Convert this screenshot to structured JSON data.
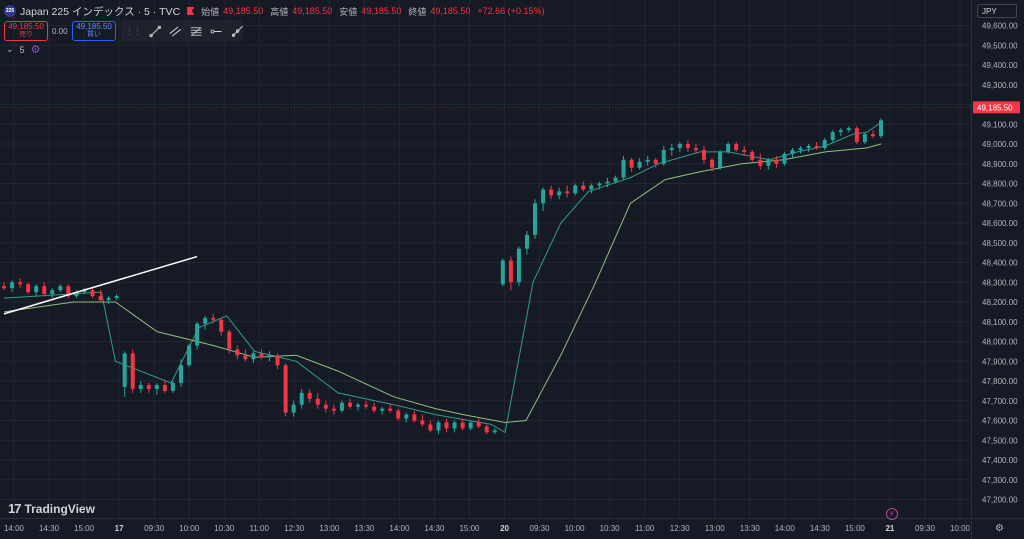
{
  "header": {
    "logo_text": "225",
    "title": "Japan 225 インデックス · 5 · TVC",
    "ohlc": [
      {
        "label": "始値",
        "value": "49,185.50"
      },
      {
        "label": "高値",
        "value": "49,185.50"
      },
      {
        "label": "安値",
        "value": "49,185.50"
      },
      {
        "label": "終値",
        "value": "49,185.50"
      }
    ],
    "change": "+72.66 (+0.15%)"
  },
  "trade": {
    "sell_price": "49,185.50",
    "sell_label": "売り",
    "spread": "0.00",
    "buy_price": "49,185.50",
    "buy_label": "買い"
  },
  "indicator": {
    "count": "5"
  },
  "currency": "JPY",
  "brand": "TradingView",
  "colors": {
    "up": "#26a69a",
    "down": "#f23645",
    "background": "#161a25",
    "grid": "#232632",
    "axis_text": "#b2b5be",
    "ma_fast": "#2e9e8a",
    "ma_slow": "#8fbf7f",
    "trendline": "#ffffff"
  },
  "chart_data": {
    "type": "candlestick",
    "yaxis": {
      "min": 47200,
      "max": 49600,
      "step": 100,
      "ticks": [
        "49,600.00",
        "49,500.00",
        "49,400.00",
        "49,300.00",
        "49,200.00",
        "49,100.00",
        "49,000.00",
        "48,900.00",
        "48,800.00",
        "48,700.00",
        "48,600.00",
        "48,500.00",
        "48,400.00",
        "48,300.00",
        "48,200.00",
        "48,100.00",
        "48,000.00",
        "47,900.00",
        "47,800.00",
        "47,700.00",
        "47,600.00",
        "47,500.00",
        "47,400.00",
        "47,300.00",
        "47,200.00"
      ]
    },
    "last_price": {
      "value": 49185.5,
      "label": "49,185.50"
    },
    "xaxis": {
      "slot_count": 130,
      "labels": [
        {
          "slot": 0,
          "text": "14:00"
        },
        {
          "slot": 6,
          "text": "14:30"
        },
        {
          "slot": 12,
          "text": "15:00"
        },
        {
          "slot": 18,
          "text": "17",
          "bold": true
        },
        {
          "slot": 24,
          "text": "09:30"
        },
        {
          "slot": 30,
          "text": "10:00"
        },
        {
          "slot": 36,
          "text": "10:30"
        },
        {
          "slot": 42,
          "text": "11:00"
        },
        {
          "slot": 48,
          "text": "12:30"
        },
        {
          "slot": 54,
          "text": "13:00"
        },
        {
          "slot": 60,
          "text": "13:30"
        },
        {
          "slot": 66,
          "text": "14:00"
        },
        {
          "slot": 72,
          "text": "14:30"
        },
        {
          "slot": 78,
          "text": "15:00"
        },
        {
          "slot": 84,
          "text": "20",
          "bold": true
        },
        {
          "slot": 90,
          "text": "09:30"
        },
        {
          "slot": 96,
          "text": "10:00"
        },
        {
          "slot": 102,
          "text": "10:30"
        },
        {
          "slot": 108,
          "text": "11:00"
        },
        {
          "slot": 114,
          "text": "12:30"
        },
        {
          "slot": 120,
          "text": "13:00"
        },
        {
          "slot": 126,
          "text": "13:30"
        },
        {
          "slot": 132,
          "text": "14:00"
        },
        {
          "slot": 138,
          "text": "14:30"
        },
        {
          "slot": 144,
          "text": "15:00"
        },
        {
          "slot": 150,
          "text": "21",
          "bold": true
        },
        {
          "slot": 156,
          "text": "09:30"
        },
        {
          "slot": 162,
          "text": "10:00"
        }
      ]
    },
    "candles": [
      {
        "o": 48280,
        "h": 48300,
        "l": 48260,
        "c": 48270
      },
      {
        "o": 48270,
        "h": 48310,
        "l": 48250,
        "c": 48300
      },
      {
        "o": 48300,
        "h": 48320,
        "l": 48270,
        "c": 48290
      },
      {
        "o": 48290,
        "h": 48300,
        "l": 48240,
        "c": 48250
      },
      {
        "o": 48250,
        "h": 48290,
        "l": 48230,
        "c": 48280
      },
      {
        "o": 48280,
        "h": 48300,
        "l": 48230,
        "c": 48240
      },
      {
        "o": 48240,
        "h": 48270,
        "l": 48220,
        "c": 48260
      },
      {
        "o": 48260,
        "h": 48290,
        "l": 48250,
        "c": 48280
      },
      {
        "o": 48280,
        "h": 48290,
        "l": 48220,
        "c": 48230
      },
      {
        "o": 48230,
        "h": 48260,
        "l": 48220,
        "c": 48250
      },
      {
        "o": 48250,
        "h": 48270,
        "l": 48240,
        "c": 48260
      },
      {
        "o": 48260,
        "h": 48270,
        "l": 48220,
        "c": 48230
      },
      {
        "o": 48230,
        "h": 48260,
        "l": 48200,
        "c": 48210
      },
      {
        "o": 48210,
        "h": 48230,
        "l": 48190,
        "c": 48220
      },
      {
        "o": 48220,
        "h": 48240,
        "l": 48210,
        "c": 48230
      },
      {
        "o": 47770,
        "h": 47950,
        "l": 47720,
        "c": 47940
      },
      {
        "o": 47940,
        "h": 47960,
        "l": 47740,
        "c": 47760
      },
      {
        "o": 47760,
        "h": 47800,
        "l": 47740,
        "c": 47780
      },
      {
        "o": 47780,
        "h": 47790,
        "l": 47740,
        "c": 47760
      },
      {
        "o": 47760,
        "h": 47790,
        "l": 47730,
        "c": 47780
      },
      {
        "o": 47780,
        "h": 47800,
        "l": 47740,
        "c": 47750
      },
      {
        "o": 47750,
        "h": 47800,
        "l": 47740,
        "c": 47790
      },
      {
        "o": 47790,
        "h": 47910,
        "l": 47770,
        "c": 47880
      },
      {
        "o": 47880,
        "h": 47990,
        "l": 47870,
        "c": 47980
      },
      {
        "o": 47980,
        "h": 48100,
        "l": 47960,
        "c": 48090
      },
      {
        "o": 48090,
        "h": 48130,
        "l": 48060,
        "c": 48120
      },
      {
        "o": 48120,
        "h": 48140,
        "l": 48090,
        "c": 48110
      },
      {
        "o": 48110,
        "h": 48120,
        "l": 48030,
        "c": 48050
      },
      {
        "o": 48050,
        "h": 48060,
        "l": 47940,
        "c": 47960
      },
      {
        "o": 47960,
        "h": 47980,
        "l": 47910,
        "c": 47930
      },
      {
        "o": 47930,
        "h": 47960,
        "l": 47900,
        "c": 47910
      },
      {
        "o": 47910,
        "h": 47950,
        "l": 47890,
        "c": 47940
      },
      {
        "o": 47940,
        "h": 47960,
        "l": 47910,
        "c": 47920
      },
      {
        "o": 47920,
        "h": 47950,
        "l": 47900,
        "c": 47930
      },
      {
        "o": 47930,
        "h": 47940,
        "l": 47860,
        "c": 47880
      },
      {
        "o": 47880,
        "h": 47890,
        "l": 47620,
        "c": 47640
      },
      {
        "o": 47640,
        "h": 47700,
        "l": 47620,
        "c": 47680
      },
      {
        "o": 47680,
        "h": 47760,
        "l": 47660,
        "c": 47740
      },
      {
        "o": 47740,
        "h": 47760,
        "l": 47690,
        "c": 47710
      },
      {
        "o": 47710,
        "h": 47740,
        "l": 47660,
        "c": 47680
      },
      {
        "o": 47680,
        "h": 47700,
        "l": 47640,
        "c": 47660
      },
      {
        "o": 47660,
        "h": 47680,
        "l": 47630,
        "c": 47650
      },
      {
        "o": 47650,
        "h": 47700,
        "l": 47640,
        "c": 47690
      },
      {
        "o": 47690,
        "h": 47710,
        "l": 47660,
        "c": 47670
      },
      {
        "o": 47670,
        "h": 47690,
        "l": 47650,
        "c": 47680
      },
      {
        "o": 47680,
        "h": 47700,
        "l": 47660,
        "c": 47670
      },
      {
        "o": 47670,
        "h": 47690,
        "l": 47640,
        "c": 47650
      },
      {
        "o": 47650,
        "h": 47670,
        "l": 47630,
        "c": 47660
      },
      {
        "o": 47660,
        "h": 47680,
        "l": 47640,
        "c": 47650
      },
      {
        "o": 47650,
        "h": 47660,
        "l": 47600,
        "c": 47610
      },
      {
        "o": 47610,
        "h": 47640,
        "l": 47590,
        "c": 47630
      },
      {
        "o": 47630,
        "h": 47650,
        "l": 47590,
        "c": 47600
      },
      {
        "o": 47600,
        "h": 47630,
        "l": 47570,
        "c": 47580
      },
      {
        "o": 47580,
        "h": 47600,
        "l": 47540,
        "c": 47550
      },
      {
        "o": 47550,
        "h": 47600,
        "l": 47530,
        "c": 47590
      },
      {
        "o": 47590,
        "h": 47610,
        "l": 47540,
        "c": 47560
      },
      {
        "o": 47560,
        "h": 47600,
        "l": 47540,
        "c": 47590
      },
      {
        "o": 47590,
        "h": 47610,
        "l": 47550,
        "c": 47560
      },
      {
        "o": 47560,
        "h": 47600,
        "l": 47550,
        "c": 47590
      },
      {
        "o": 47590,
        "h": 47610,
        "l": 47560,
        "c": 47570
      },
      {
        "o": 47570,
        "h": 47580,
        "l": 47530,
        "c": 47540
      },
      {
        "o": 47540,
        "h": 47560,
        "l": 47530,
        "c": 47550
      },
      {
        "o": 48290,
        "h": 48420,
        "l": 48280,
        "c": 48410
      },
      {
        "o": 48410,
        "h": 48430,
        "l": 48260,
        "c": 48300
      },
      {
        "o": 48300,
        "h": 48480,
        "l": 48280,
        "c": 48470
      },
      {
        "o": 48470,
        "h": 48560,
        "l": 48440,
        "c": 48540
      },
      {
        "o": 48540,
        "h": 48720,
        "l": 48520,
        "c": 48700
      },
      {
        "o": 48700,
        "h": 48780,
        "l": 48660,
        "c": 48770
      },
      {
        "o": 48770,
        "h": 48790,
        "l": 48720,
        "c": 48740
      },
      {
        "o": 48740,
        "h": 48780,
        "l": 48720,
        "c": 48760
      },
      {
        "o": 48760,
        "h": 48790,
        "l": 48730,
        "c": 48750
      },
      {
        "o": 48750,
        "h": 48800,
        "l": 48740,
        "c": 48790
      },
      {
        "o": 48790,
        "h": 48810,
        "l": 48760,
        "c": 48770
      },
      {
        "o": 48770,
        "h": 48800,
        "l": 48750,
        "c": 48790
      },
      {
        "o": 48790,
        "h": 48810,
        "l": 48770,
        "c": 48800
      },
      {
        "o": 48800,
        "h": 48830,
        "l": 48780,
        "c": 48810
      },
      {
        "o": 48810,
        "h": 48840,
        "l": 48800,
        "c": 48830
      },
      {
        "o": 48830,
        "h": 48940,
        "l": 48820,
        "c": 48920
      },
      {
        "o": 48920,
        "h": 48930,
        "l": 48860,
        "c": 48880
      },
      {
        "o": 48880,
        "h": 48930,
        "l": 48870,
        "c": 48910
      },
      {
        "o": 48910,
        "h": 48940,
        "l": 48890,
        "c": 48920
      },
      {
        "o": 48920,
        "h": 48930,
        "l": 48880,
        "c": 48900
      },
      {
        "o": 48900,
        "h": 48990,
        "l": 48890,
        "c": 48970
      },
      {
        "o": 48970,
        "h": 49000,
        "l": 48940,
        "c": 48980
      },
      {
        "o": 48980,
        "h": 49010,
        "l": 48960,
        "c": 49000
      },
      {
        "o": 49000,
        "h": 49020,
        "l": 48960,
        "c": 48980
      },
      {
        "o": 48980,
        "h": 49000,
        "l": 48950,
        "c": 48970
      },
      {
        "o": 48970,
        "h": 48990,
        "l": 48900,
        "c": 48920
      },
      {
        "o": 48920,
        "h": 48930,
        "l": 48860,
        "c": 48880
      },
      {
        "o": 48880,
        "h": 48970,
        "l": 48870,
        "c": 48960
      },
      {
        "o": 48960,
        "h": 49010,
        "l": 48950,
        "c": 49000
      },
      {
        "o": 49000,
        "h": 49010,
        "l": 48960,
        "c": 48970
      },
      {
        "o": 48970,
        "h": 48990,
        "l": 48940,
        "c": 48960
      },
      {
        "o": 48960,
        "h": 48970,
        "l": 48910,
        "c": 48920
      },
      {
        "o": 48920,
        "h": 48950,
        "l": 48870,
        "c": 48890
      },
      {
        "o": 48890,
        "h": 48930,
        "l": 48870,
        "c": 48920
      },
      {
        "o": 48920,
        "h": 48940,
        "l": 48880,
        "c": 48900
      },
      {
        "o": 48900,
        "h": 48960,
        "l": 48890,
        "c": 48950
      },
      {
        "o": 48950,
        "h": 48980,
        "l": 48930,
        "c": 48970
      },
      {
        "o": 48970,
        "h": 48990,
        "l": 48950,
        "c": 48980
      },
      {
        "o": 48980,
        "h": 49000,
        "l": 48960,
        "c": 48990
      },
      {
        "o": 48990,
        "h": 49010,
        "l": 48970,
        "c": 48980
      },
      {
        "o": 48980,
        "h": 49030,
        "l": 48970,
        "c": 49020
      },
      {
        "o": 49020,
        "h": 49070,
        "l": 49010,
        "c": 49060
      },
      {
        "o": 49060,
        "h": 49080,
        "l": 49040,
        "c": 49070
      },
      {
        "o": 49070,
        "h": 49090,
        "l": 49060,
        "c": 49080
      },
      {
        "o": 49080,
        "h": 49090,
        "l": 49000,
        "c": 49010
      },
      {
        "o": 49010,
        "h": 49060,
        "l": 49000,
        "c": 49050
      },
      {
        "o": 49050,
        "h": 49070,
        "l": 49030,
        "c": 49040
      },
      {
        "o": 49040,
        "h": 49130,
        "l": 49030,
        "c": 49120
      }
    ],
    "moving_averages": [
      {
        "color": "#2e9e8a",
        "points": [
          [
            0,
            48220
          ],
          [
            14,
            48250
          ],
          [
            16,
            47900
          ],
          [
            24,
            47790
          ],
          [
            28,
            48070
          ],
          [
            32,
            48130
          ],
          [
            36,
            47950
          ],
          [
            42,
            47900
          ],
          [
            48,
            47740
          ],
          [
            56,
            47680
          ],
          [
            62,
            47630
          ],
          [
            70,
            47580
          ],
          [
            72,
            47540
          ],
          [
            76,
            48300
          ],
          [
            80,
            48600
          ],
          [
            84,
            48760
          ],
          [
            90,
            48830
          ],
          [
            94,
            48900
          ],
          [
            100,
            48960
          ],
          [
            104,
            48960
          ],
          [
            110,
            48920
          ],
          [
            114,
            48960
          ],
          [
            118,
            48990
          ],
          [
            122,
            49050
          ],
          [
            124,
            49060
          ],
          [
            126,
            49110
          ]
        ]
      },
      {
        "color": "#8fbf7f",
        "points": [
          [
            0,
            48150
          ],
          [
            10,
            48200
          ],
          [
            16,
            48200
          ],
          [
            22,
            48050
          ],
          [
            30,
            47980
          ],
          [
            36,
            47920
          ],
          [
            42,
            47930
          ],
          [
            48,
            47850
          ],
          [
            56,
            47720
          ],
          [
            62,
            47660
          ],
          [
            66,
            47630
          ],
          [
            72,
            47590
          ],
          [
            75,
            47600
          ],
          [
            80,
            47930
          ],
          [
            85,
            48300
          ],
          [
            90,
            48700
          ],
          [
            95,
            48820
          ],
          [
            100,
            48860
          ],
          [
            106,
            48900
          ],
          [
            112,
            48920
          ],
          [
            118,
            48960
          ],
          [
            124,
            48980
          ],
          [
            126,
            49000
          ]
        ]
      }
    ],
    "trendline": [
      [
        0,
        48140
      ],
      [
        24,
        48430
      ]
    ],
    "grid": true,
    "legend": "none"
  }
}
